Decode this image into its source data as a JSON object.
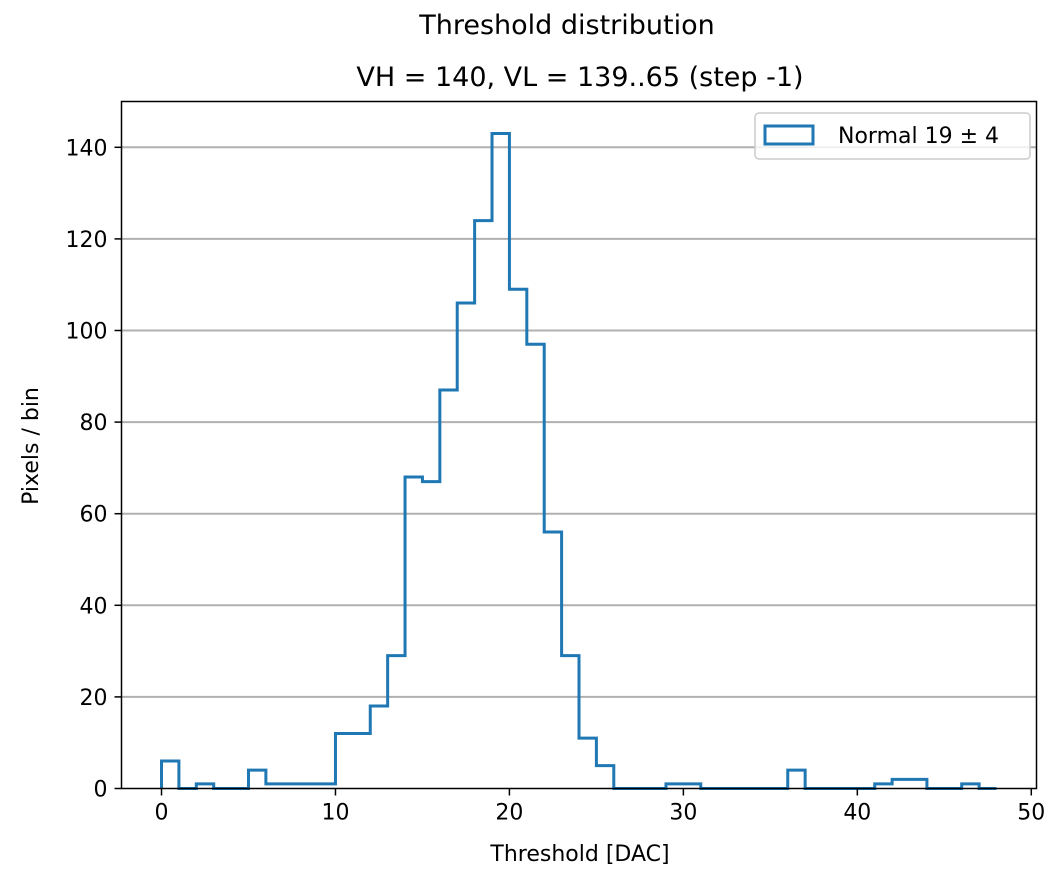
{
  "chart_data": {
    "type": "histogram",
    "title": "Threshold distribution",
    "subtitle": "VH = 140, VL = 139..65 (step -1)",
    "xlabel": "Threshold [DAC]",
    "ylabel": "Pixels / bin",
    "xlim": [
      -2.3,
      50.3
    ],
    "ylim": [
      0,
      150
    ],
    "xticks": [
      0,
      10,
      20,
      30,
      40,
      50
    ],
    "yticks": [
      0,
      20,
      40,
      60,
      80,
      100,
      120,
      140
    ],
    "grid": "horizontal",
    "legend_position": "top-right",
    "series": [
      {
        "name": "Normal 19 ± 4",
        "color": "#1f77b4",
        "bin_width": 1,
        "bin_starts": [
          0,
          1,
          2,
          3,
          4,
          5,
          6,
          7,
          8,
          9,
          10,
          11,
          12,
          13,
          14,
          15,
          16,
          17,
          18,
          19,
          20,
          21,
          22,
          23,
          24,
          25,
          26,
          27,
          28,
          29,
          30,
          31,
          32,
          33,
          34,
          35,
          36,
          37,
          38,
          39,
          40,
          41,
          42,
          43,
          44,
          45,
          46,
          47
        ],
        "counts": [
          6,
          0,
          1,
          0,
          0,
          4,
          1,
          1,
          1,
          1,
          12,
          12,
          18,
          29,
          68,
          67,
          87,
          106,
          124,
          143,
          109,
          97,
          56,
          29,
          11,
          5,
          0,
          0,
          0,
          1,
          1,
          0,
          0,
          0,
          0,
          0,
          4,
          0,
          0,
          0,
          0,
          1,
          2,
          2,
          0,
          0,
          1,
          0
        ]
      }
    ]
  }
}
